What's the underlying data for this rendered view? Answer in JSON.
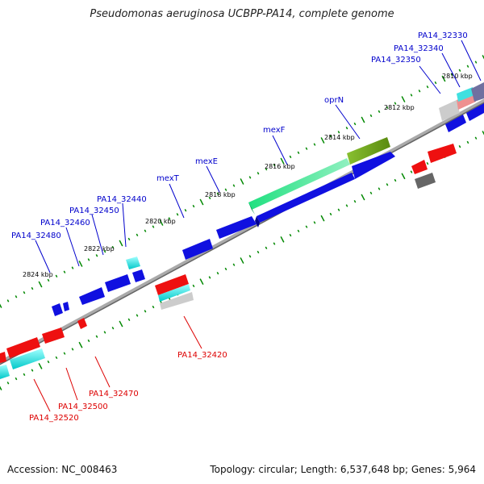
{
  "title": "Pseudomonas aeruginosa UCBPP-PA14, complete genome",
  "footer": {
    "accession": "Accession: NC_008463",
    "topology": "Topology: circular; Length: 6,537,648 bp; Genes: 5,964"
  },
  "tick_labels": [
    "2810 kbp",
    "2812 kbp",
    "2814 kbp",
    "2816 kbp",
    "2818 kbp",
    "2820 kbp",
    "2822 kbp",
    "2824 kbp"
  ],
  "forward_gene_labels": [
    "PA14_32330",
    "PA14_32340",
    "PA14_32350",
    "oprN",
    "mexF",
    "mexE",
    "mexT",
    "PA14_32440",
    "PA14_32450",
    "PA14_32460",
    "PA14_32480"
  ],
  "reverse_gene_labels": [
    "PA14_32420",
    "PA14_32470",
    "PA14_32500",
    "PA14_32520"
  ],
  "colors": {
    "forward_label": "#0000cc",
    "reverse_label": "#dd0000",
    "forward_gene": "#1010e0",
    "reverse_gene": "#ee1010",
    "backbone": "#888888",
    "tick": "#008800"
  }
}
